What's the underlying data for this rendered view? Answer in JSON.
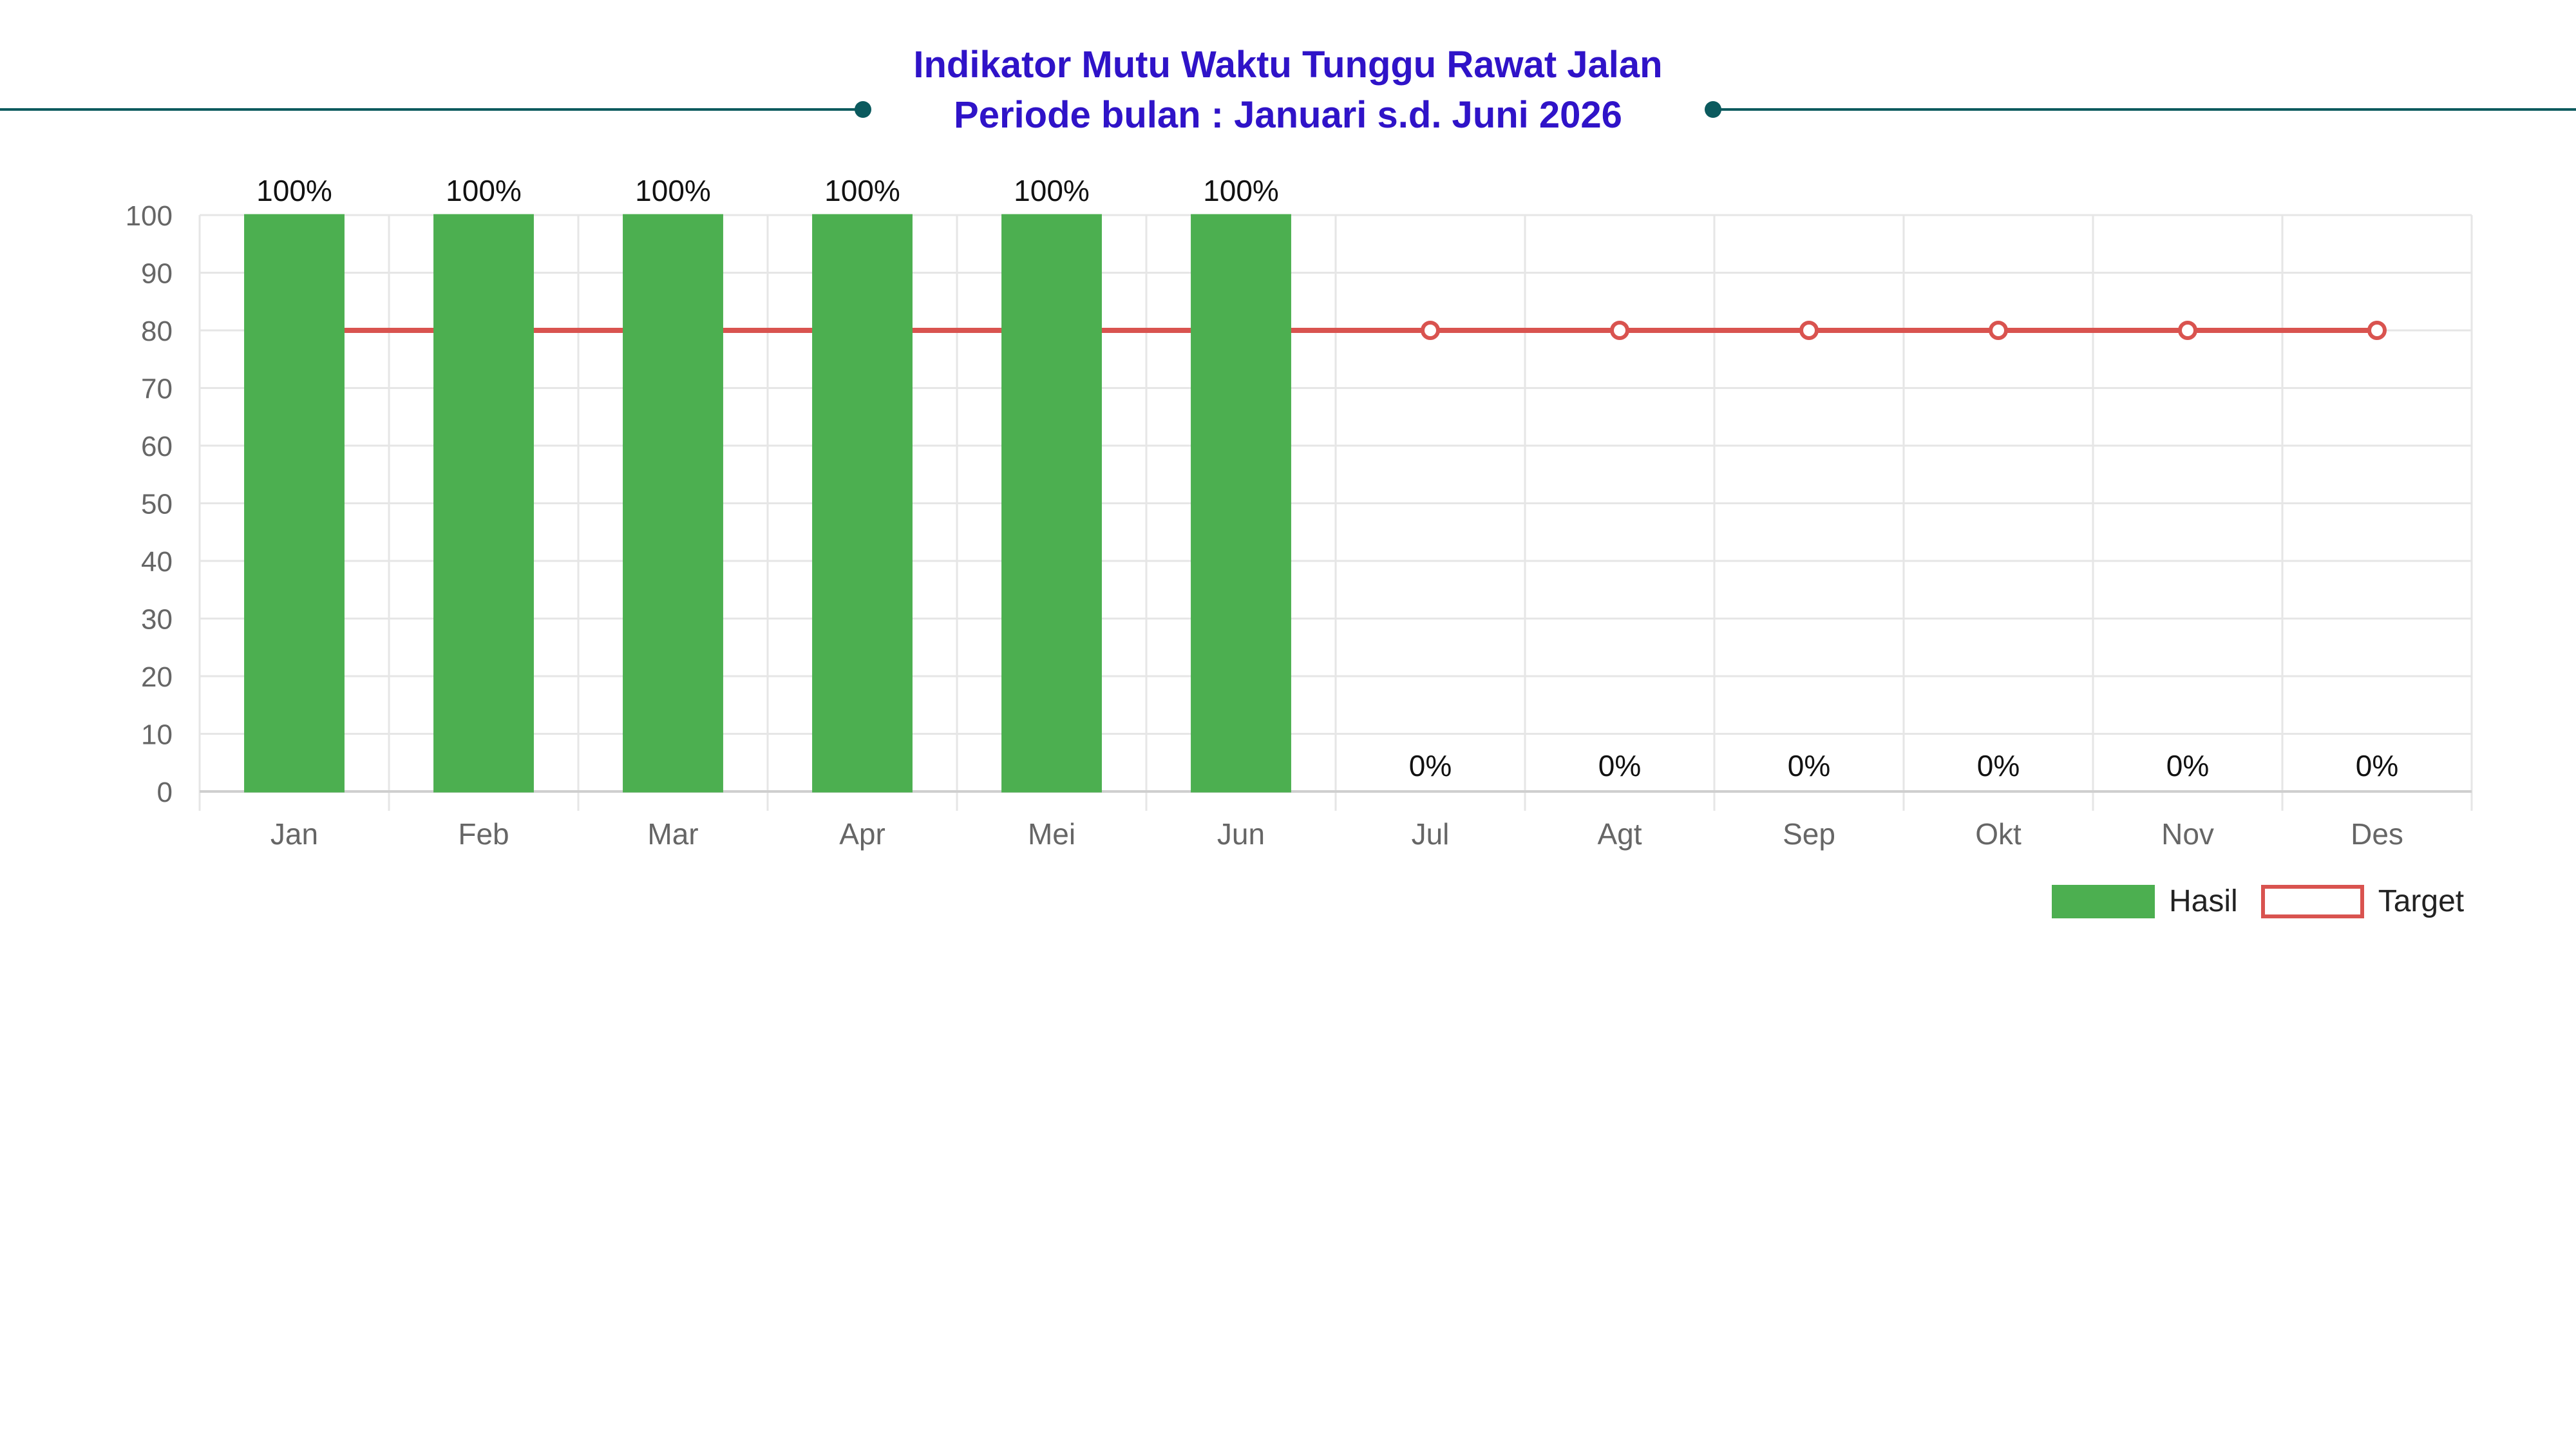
{
  "header": {
    "title_line1": "Indikator Mutu Waktu Tunggu Rawat Jalan",
    "title_line2": "Periode bulan : Januari s.d. Juni 2026"
  },
  "colors": {
    "title": "#2f13c8",
    "decoration": "#0b5a5e",
    "hasil": "#4caf50",
    "target": "#d9534f",
    "grid": "#e6e6e6",
    "tick_text": "#666666",
    "label_text": "#111111"
  },
  "legend": {
    "position": "bottom-right",
    "hasil_label": "Hasil",
    "target_label": "Target"
  },
  "chart_data": {
    "type": "bar",
    "categories": [
      "Jan",
      "Feb",
      "Mar",
      "Apr",
      "Mei",
      "Jun",
      "Jul",
      "Agt",
      "Sep",
      "Okt",
      "Nov",
      "Des"
    ],
    "series": [
      {
        "name": "Hasil",
        "type": "bar",
        "values": [
          100,
          100,
          100,
          100,
          100,
          100,
          0,
          0,
          0,
          0,
          0,
          0
        ],
        "labels": [
          "100%",
          "100%",
          "100%",
          "100%",
          "100%",
          "100%",
          "0%",
          "0%",
          "0%",
          "0%",
          "0%",
          "0%"
        ]
      },
      {
        "name": "Target",
        "type": "line",
        "values": [
          80,
          80,
          80,
          80,
          80,
          80,
          80,
          80,
          80,
          80,
          80,
          80
        ]
      }
    ],
    "yticks": [
      0,
      10,
      20,
      30,
      40,
      50,
      60,
      70,
      80,
      90,
      100
    ],
    "ylim": [
      0,
      100
    ],
    "grid": true
  }
}
